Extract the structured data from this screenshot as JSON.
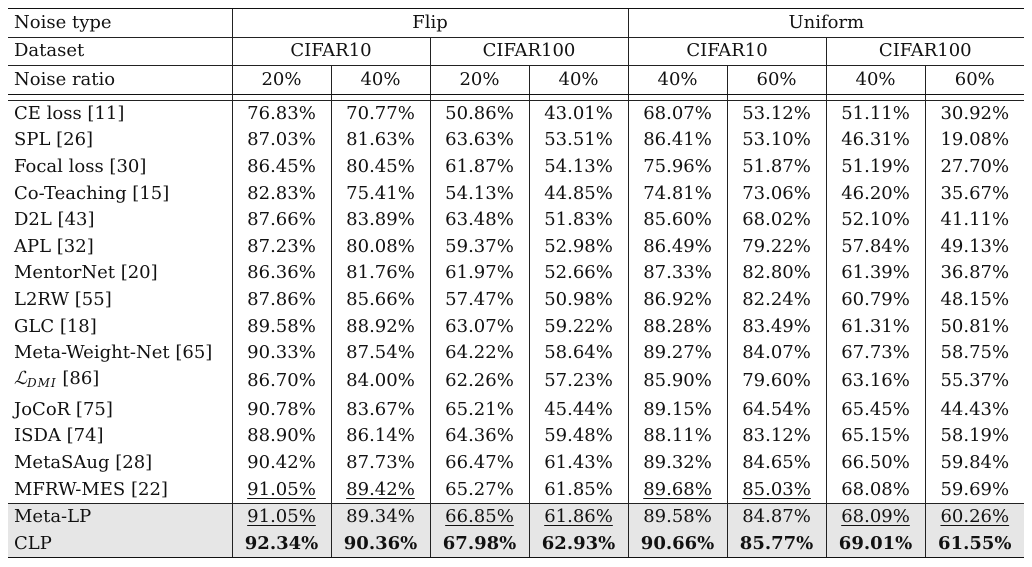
{
  "header": {
    "noise_type_label": "Noise type",
    "dataset_label": "Dataset",
    "noise_ratio_label": "Noise ratio",
    "groups": [
      {
        "name": "Flip",
        "datasets": [
          {
            "name": "CIFAR10",
            "ratios": [
              "20%",
              "40%"
            ]
          },
          {
            "name": "CIFAR100",
            "ratios": [
              "20%",
              "40%"
            ]
          }
        ]
      },
      {
        "name": "Uniform",
        "datasets": [
          {
            "name": "CIFAR10",
            "ratios": [
              "40%",
              "60%"
            ]
          },
          {
            "name": "CIFAR100",
            "ratios": [
              "40%",
              "60%"
            ]
          }
        ]
      }
    ]
  },
  "rows": [
    {
      "method": "CE loss [11]",
      "values": [
        "76.83%",
        "70.77%",
        "50.86%",
        "43.01%",
        "68.07%",
        "53.12%",
        "51.11%",
        "30.92%"
      ]
    },
    {
      "method": "SPL [26]",
      "values": [
        "87.03%",
        "81.63%",
        "63.63%",
        "53.51%",
        "86.41%",
        "53.10%",
        "46.31%",
        "19.08%"
      ]
    },
    {
      "method": "Focal loss [30]",
      "values": [
        "86.45%",
        "80.45%",
        "61.87%",
        "54.13%",
        "75.96%",
        "51.87%",
        "51.19%",
        "27.70%"
      ]
    },
    {
      "method": "Co-Teaching [15]",
      "values": [
        "82.83%",
        "75.41%",
        "54.13%",
        "44.85%",
        "74.81%",
        "73.06%",
        "46.20%",
        "35.67%"
      ]
    },
    {
      "method": "D2L [43]",
      "values": [
        "87.66%",
        "83.89%",
        "63.48%",
        "51.83%",
        "85.60%",
        "68.02%",
        "52.10%",
        "41.11%"
      ]
    },
    {
      "method": "APL [32]",
      "values": [
        "87.23%",
        "80.08%",
        "59.37%",
        "52.98%",
        "86.49%",
        "79.22%",
        "57.84%",
        "49.13%"
      ]
    },
    {
      "method": "MentorNet [20]",
      "values": [
        "86.36%",
        "81.76%",
        "61.97%",
        "52.66%",
        "87.33%",
        "82.80%",
        "61.39%",
        "36.87%"
      ]
    },
    {
      "method": "L2RW [55]",
      "values": [
        "87.86%",
        "85.66%",
        "57.47%",
        "50.98%",
        "86.92%",
        "82.24%",
        "60.79%",
        "48.15%"
      ]
    },
    {
      "method": "GLC [18]",
      "values": [
        "89.58%",
        "88.92%",
        "63.07%",
        "59.22%",
        "88.28%",
        "83.49%",
        "61.31%",
        "50.81%"
      ]
    },
    {
      "method": "Meta-Weight-Net [65]",
      "values": [
        "90.33%",
        "87.54%",
        "64.22%",
        "58.64%",
        "89.27%",
        "84.07%",
        "67.73%",
        "58.75%"
      ]
    },
    {
      "method_parts": {
        "script": "ℒ",
        "sub": "DMI",
        "ref": " [86]"
      },
      "values": [
        "86.70%",
        "84.00%",
        "62.26%",
        "57.23%",
        "85.90%",
        "79.60%",
        "63.16%",
        "55.37%"
      ]
    },
    {
      "method": "JoCoR [75]",
      "values": [
        "90.78%",
        "83.67%",
        "65.21%",
        "45.44%",
        "89.15%",
        "64.54%",
        "65.45%",
        "44.43%"
      ]
    },
    {
      "method": "ISDA [74]",
      "values": [
        "88.90%",
        "86.14%",
        "64.36%",
        "59.48%",
        "88.11%",
        "83.12%",
        "65.15%",
        "58.19%"
      ]
    },
    {
      "method": "MetaSAug [28]",
      "values": [
        "90.42%",
        "87.73%",
        "66.47%",
        "61.43%",
        "89.32%",
        "84.65%",
        "66.50%",
        "59.84%"
      ]
    },
    {
      "method": "MFRW-MES [22]",
      "values": [
        "91.05%",
        "89.42%",
        "65.27%",
        "61.85%",
        "89.68%",
        "85.03%",
        "68.08%",
        "59.69%"
      ],
      "underline": [
        0,
        1,
        4,
        5
      ]
    },
    {
      "method": "Meta-LP",
      "values": [
        "91.05%",
        "89.34%",
        "66.85%",
        "61.86%",
        "89.58%",
        "84.87%",
        "68.09%",
        "60.26%"
      ],
      "underline": [
        0,
        2,
        3,
        6,
        7
      ],
      "highlight": true
    },
    {
      "method": "CLP",
      "values": [
        "92.34%",
        "90.36%",
        "67.98%",
        "62.93%",
        "90.66%",
        "85.77%",
        "69.01%",
        "61.55%"
      ],
      "bold": [
        0,
        1,
        2,
        3,
        4,
        5,
        6,
        7
      ],
      "highlight": true
    }
  ]
}
